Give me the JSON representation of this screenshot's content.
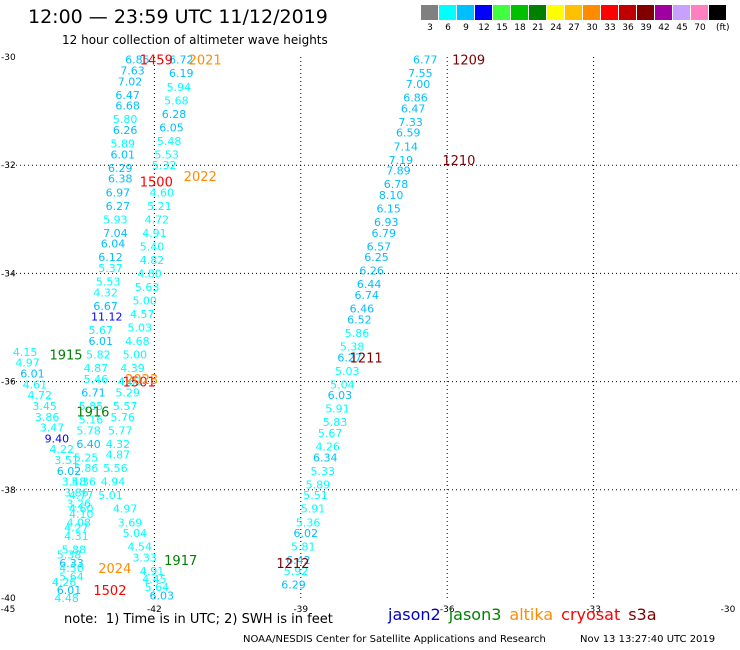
{
  "header": {
    "title": "12:00 — 23:59 UTC 11/12/2019",
    "subtitle": "12 hour collection of altimeter wave heights"
  },
  "scale": {
    "units": "(ft)",
    "bins": [
      {
        "label": "3",
        "color": "#808080"
      },
      {
        "label": "6",
        "color": "#00ffff"
      },
      {
        "label": "9",
        "color": "#00bfff"
      },
      {
        "label": "12",
        "color": "#0000ff"
      },
      {
        "label": "15",
        "color": "#40ff40"
      },
      {
        "label": "18",
        "color": "#00c000"
      },
      {
        "label": "21",
        "color": "#008000"
      },
      {
        "label": "24",
        "color": "#ffff00"
      },
      {
        "label": "27",
        "color": "#ffc000"
      },
      {
        "label": "30",
        "color": "#ff8c00"
      },
      {
        "label": "33",
        "color": "#ff0000"
      },
      {
        "label": "36",
        "color": "#c00000"
      },
      {
        "label": "39",
        "color": "#800000"
      },
      {
        "label": "42",
        "color": "#a000a0"
      },
      {
        "label": "45",
        "color": "#c8a0ff"
      },
      {
        "label": "70",
        "color": "#ff80c0"
      },
      {
        "label": "",
        "color": "#000000"
      }
    ]
  },
  "map": {
    "lon_ticks": [
      "-45",
      "-42",
      "-39",
      "-36",
      "-33",
      "-30"
    ],
    "lat_ticks": [
      "-30",
      "-32",
      "-34",
      "-36",
      "-38",
      "-40"
    ],
    "lon_range": [
      -45,
      -30
    ],
    "lat_range": [
      -40,
      -30
    ],
    "grid": "dotted",
    "colors": {
      "jason2": "#0000cc",
      "jason3": "#008000",
      "altika": "#ff8c00",
      "cryosat": "#ff0000",
      "s3a": "#800000"
    }
  },
  "tracks": [
    {
      "sat": "s3a",
      "times": [
        {
          "t": "1209",
          "lon": -35.9,
          "lat": -30.05
        },
        {
          "t": "1210",
          "lon": -36.1,
          "lat": -31.9
        },
        {
          "t": "1211",
          "lon": -38.0,
          "lat": -35.55
        },
        {
          "t": "1212",
          "lon": -39.5,
          "lat": -39.35
        }
      ],
      "points": [
        {
          "v": "6.77",
          "lon": -36.7,
          "lat": -30.05
        },
        {
          "v": "7.55",
          "lon": -36.8,
          "lat": -30.3
        },
        {
          "v": "7.00",
          "lon": -36.85,
          "lat": -30.5
        },
        {
          "v": "6.86",
          "lon": -36.9,
          "lat": -30.75
        },
        {
          "v": "6.47",
          "lon": -36.95,
          "lat": -30.95
        },
        {
          "v": "7.33",
          "lon": -37.0,
          "lat": -31.2
        },
        {
          "v": "6.59",
          "lon": -37.05,
          "lat": -31.4
        },
        {
          "v": "7.14",
          "lon": -37.1,
          "lat": -31.65
        },
        {
          "v": "7.19",
          "lon": -37.2,
          "lat": -31.9
        },
        {
          "v": "7.89",
          "lon": -37.25,
          "lat": -32.1
        },
        {
          "v": "6.78",
          "lon": -37.3,
          "lat": -32.35
        },
        {
          "v": "8.10",
          "lon": -37.4,
          "lat": -32.55
        },
        {
          "v": "6.15",
          "lon": -37.45,
          "lat": -32.8
        },
        {
          "v": "6.93",
          "lon": -37.5,
          "lat": -33.05
        },
        {
          "v": "6.79",
          "lon": -37.55,
          "lat": -33.25
        },
        {
          "v": "6.57",
          "lon": -37.65,
          "lat": -33.5
        },
        {
          "v": "6.25",
          "lon": -37.7,
          "lat": -33.7
        },
        {
          "v": "6.26",
          "lon": -37.8,
          "lat": -33.95
        },
        {
          "v": "6.44",
          "lon": -37.85,
          "lat": -34.2
        },
        {
          "v": "6.74",
          "lon": -37.9,
          "lat": -34.4
        },
        {
          "v": "6.46",
          "lon": -38.0,
          "lat": -34.65
        },
        {
          "v": "6.52",
          "lon": -38.05,
          "lat": -34.85
        },
        {
          "v": "5.86",
          "lon": -38.1,
          "lat": -35.1
        },
        {
          "v": "5.38",
          "lon": -38.2,
          "lat": -35.35
        },
        {
          "v": "6.27",
          "lon": -38.25,
          "lat": -35.55
        },
        {
          "v": "5.03",
          "lon": -38.3,
          "lat": -35.8
        },
        {
          "v": "5.04",
          "lon": -38.4,
          "lat": -36.05
        },
        {
          "v": "6.03",
          "lon": -38.45,
          "lat": -36.25
        },
        {
          "v": "5.91",
          "lon": -38.5,
          "lat": -36.5
        },
        {
          "v": "5.83",
          "lon": -38.55,
          "lat": -36.75
        },
        {
          "v": "5.67",
          "lon": -38.65,
          "lat": -36.95
        },
        {
          "v": "4.26",
          "lon": -38.7,
          "lat": -37.2
        },
        {
          "v": "6.34",
          "lon": -38.75,
          "lat": -37.4
        },
        {
          "v": "5.33",
          "lon": -38.8,
          "lat": -37.65
        },
        {
          "v": "5.89",
          "lon": -38.9,
          "lat": -37.9
        },
        {
          "v": "5.51",
          "lon": -38.95,
          "lat": -38.1
        },
        {
          "v": "5.91",
          "lon": -39.0,
          "lat": -38.35
        },
        {
          "v": "5.36",
          "lon": -39.1,
          "lat": -38.6
        },
        {
          "v": "6.02",
          "lon": -39.15,
          "lat": -38.8
        },
        {
          "v": "5.81",
          "lon": -39.2,
          "lat": -39.05
        },
        {
          "v": "6.42",
          "lon": -39.3,
          "lat": -39.3
        },
        {
          "v": "5.92",
          "lon": -39.35,
          "lat": -39.5
        },
        {
          "v": "6.29",
          "lon": -39.4,
          "lat": -39.75
        }
      ]
    },
    {
      "sat": "altika",
      "times": [
        {
          "t": "2021",
          "lon": -41.3,
          "lat": -30.05
        },
        {
          "t": "2022",
          "lon": -41.4,
          "lat": -32.2
        }
      ],
      "points": [
        {
          "v": "6.72",
          "lon": -41.7,
          "lat": -30.05
        },
        {
          "v": "6.19",
          "lon": -41.7,
          "lat": -30.3
        },
        {
          "v": "5.94",
          "lon": -41.75,
          "lat": -30.55
        },
        {
          "v": "5.68",
          "lon": -41.8,
          "lat": -30.8
        },
        {
          "v": "6.28",
          "lon": -41.85,
          "lat": -31.05
        },
        {
          "v": "6.05",
          "lon": -41.9,
          "lat": -31.3
        },
        {
          "v": "5.48",
          "lon": -41.95,
          "lat": -31.55
        },
        {
          "v": "5.53",
          "lon": -42.0,
          "lat": -31.8
        },
        {
          "v": "5.32",
          "lon": -42.05,
          "lat": -32.0
        },
        {
          "v": "4.60",
          "lon": -42.1,
          "lat": -32.5
        },
        {
          "v": "5.21",
          "lon": -42.15,
          "lat": -32.75
        },
        {
          "v": "4.72",
          "lon": -42.2,
          "lat": -33.0
        },
        {
          "v": "4.91",
          "lon": -42.25,
          "lat": -33.25
        },
        {
          "v": "5.40",
          "lon": -42.3,
          "lat": -33.5
        },
        {
          "v": "4.82",
          "lon": -42.3,
          "lat": -33.75
        },
        {
          "v": "4.80",
          "lon": -42.35,
          "lat": -34.0
        },
        {
          "v": "5.63",
          "lon": -42.4,
          "lat": -34.25
        },
        {
          "v": "5.00",
          "lon": -42.45,
          "lat": -34.5
        },
        {
          "v": "4.57",
          "lon": -42.5,
          "lat": -34.75
        },
        {
          "v": "5.03",
          "lon": -42.55,
          "lat": -35.0
        },
        {
          "v": "4.68",
          "lon": -42.6,
          "lat": -35.25
        },
        {
          "v": "5.00",
          "lon": -42.65,
          "lat": -35.5
        },
        {
          "v": "4.39",
          "lon": -42.7,
          "lat": -35.75
        },
        {
          "v": "4.63",
          "lon": -42.75,
          "lat": -36.0
        },
        {
          "v": "5.29",
          "lon": -42.8,
          "lat": -36.2
        },
        {
          "v": "5.57",
          "lon": -42.85,
          "lat": -36.45
        },
        {
          "v": "5.76",
          "lon": -42.9,
          "lat": -36.65
        },
        {
          "v": "5.77",
          "lon": -42.95,
          "lat": -36.9
        },
        {
          "v": "4.32",
          "lon": -43.0,
          "lat": -37.15
        },
        {
          "v": "4.87",
          "lon": -43.0,
          "lat": -37.35
        },
        {
          "v": "5.56",
          "lon": -43.05,
          "lat": -37.6
        },
        {
          "v": "4.94",
          "lon": -43.1,
          "lat": -37.85
        },
        {
          "v": "5.01",
          "lon": -43.15,
          "lat": -38.1
        },
        {
          "v": "4.97",
          "lon": -42.85,
          "lat": -38.35
        },
        {
          "v": "3.69",
          "lon": -42.75,
          "lat": -38.6
        },
        {
          "v": "5.04",
          "lon": -42.65,
          "lat": -38.8
        },
        {
          "v": "4.54",
          "lon": -42.55,
          "lat": -39.05
        },
        {
          "v": "3.33",
          "lon": -42.45,
          "lat": -39.25
        },
        {
          "v": "4.91",
          "lon": -42.3,
          "lat": -39.5
        },
        {
          "v": "4.45",
          "lon": -42.25,
          "lat": -39.65
        },
        {
          "v": "5.64",
          "lon": -42.2,
          "lat": -39.8
        },
        {
          "v": "6.03",
          "lon": -42.1,
          "lat": -39.95
        }
      ]
    },
    {
      "sat": "cryosat",
      "times": [
        {
          "t": "1459",
          "lon": -42.3,
          "lat": -30.05
        },
        {
          "t": "1500",
          "lon": -42.3,
          "lat": -32.3
        },
        {
          "t": "1501",
          "lon": -42.65,
          "lat": -36.0
        },
        {
          "t": "1502",
          "lon": -43.25,
          "lat": -39.85
        }
      ],
      "points": [
        {
          "v": "6.85",
          "lon": -42.6,
          "lat": -30.05
        },
        {
          "v": "7.63",
          "lon": -42.7,
          "lat": -30.25
        },
        {
          "v": "7.02",
          "lon": -42.75,
          "lat": -30.45
        },
        {
          "v": "6.47",
          "lon": -42.8,
          "lat": -30.7
        },
        {
          "v": "6.68",
          "lon": -42.8,
          "lat": -30.9
        },
        {
          "v": "5.80",
          "lon": -42.85,
          "lat": -31.15
        },
        {
          "v": "6.26",
          "lon": -42.85,
          "lat": -31.35
        },
        {
          "v": "5.89",
          "lon": -42.9,
          "lat": -31.6
        },
        {
          "v": "6.01",
          "lon": -42.9,
          "lat": -31.8
        },
        {
          "v": "6.29",
          "lon": -42.95,
          "lat": -32.05
        },
        {
          "v": "6.38",
          "lon": -42.95,
          "lat": -32.25
        },
        {
          "v": "6.97",
          "lon": -43.0,
          "lat": -32.5
        },
        {
          "v": "6.27",
          "lon": -43.0,
          "lat": -32.75
        },
        {
          "v": "5.93",
          "lon": -43.05,
          "lat": -33.0
        },
        {
          "v": "7.04",
          "lon": -43.05,
          "lat": -33.25
        },
        {
          "v": "6.04",
          "lon": -43.1,
          "lat": -33.45
        },
        {
          "v": "6.12",
          "lon": -43.15,
          "lat": -33.7
        },
        {
          "v": "5.37",
          "lon": -43.15,
          "lat": -33.9
        },
        {
          "v": "5.53",
          "lon": -43.2,
          "lat": -34.15
        },
        {
          "v": "4.32",
          "lon": -43.25,
          "lat": -34.35
        },
        {
          "v": "6.67",
          "lon": -43.25,
          "lat": -34.6
        },
        {
          "v": "11.12",
          "lon": -43.3,
          "lat": -34.8
        },
        {
          "v": "5.67",
          "lon": -43.35,
          "lat": -35.05
        },
        {
          "v": "6.01",
          "lon": -43.35,
          "lat": -35.25
        },
        {
          "v": "5.82",
          "lon": -43.4,
          "lat": -35.5
        },
        {
          "v": "4.87",
          "lon": -43.45,
          "lat": -35.75
        },
        {
          "v": "5.46",
          "lon": -43.45,
          "lat": -35.95
        },
        {
          "v": "6.71",
          "lon": -43.5,
          "lat": -36.2
        },
        {
          "v": "5.85",
          "lon": -43.55,
          "lat": -36.45
        },
        {
          "v": "5.16",
          "lon": -43.55,
          "lat": -36.7
        },
        {
          "v": "5.78",
          "lon": -43.6,
          "lat": -36.9
        },
        {
          "v": "6.40",
          "lon": -43.6,
          "lat": -37.15
        },
        {
          "v": "5.25",
          "lon": -43.65,
          "lat": -37.4
        },
        {
          "v": "5.86",
          "lon": -43.65,
          "lat": -37.6
        },
        {
          "v": "5.36",
          "lon": -43.7,
          "lat": -37.85
        },
        {
          "v": "4.77",
          "lon": -43.75,
          "lat": -38.1
        },
        {
          "v": "4.60",
          "lon": -43.75,
          "lat": -38.35
        },
        {
          "v": "4.08",
          "lon": -43.8,
          "lat": -38.6
        },
        {
          "v": "4.31",
          "lon": -43.85,
          "lat": -38.85
        },
        {
          "v": "5.88",
          "lon": -43.9,
          "lat": -39.1
        },
        {
          "v": "6.33",
          "lon": -43.95,
          "lat": -39.35
        },
        {
          "v": "5.64",
          "lon": -43.95,
          "lat": -39.6
        },
        {
          "v": "6.01",
          "lon": -44.0,
          "lat": -39.85
        }
      ]
    },
    {
      "sat": "jason3",
      "times": [
        {
          "t": "1915",
          "lon": -44.15,
          "lat": -35.5
        },
        {
          "t": "1916",
          "lon": -43.6,
          "lat": -36.55
        },
        {
          "t": "1917",
          "lon": -41.8,
          "lat": -39.3
        }
      ],
      "points": [
        {
          "v": "4.15",
          "lon": -44.9,
          "lat": -35.45
        },
        {
          "v": "4.97",
          "lon": -44.85,
          "lat": -35.65
        },
        {
          "v": "6.01",
          "lon": -44.75,
          "lat": -35.85
        },
        {
          "v": "4.61",
          "lon": -44.7,
          "lat": -36.05
        },
        {
          "v": "4.72",
          "lon": -44.6,
          "lat": -36.25
        },
        {
          "v": "3.45",
          "lon": -44.5,
          "lat": -36.45
        },
        {
          "v": "3.86",
          "lon": -44.45,
          "lat": -36.65
        },
        {
          "v": "3.47",
          "lon": -44.35,
          "lat": -36.85
        },
        {
          "v": "9.40",
          "lon": -44.25,
          "lat": -37.05
        },
        {
          "v": "4.22",
          "lon": -44.15,
          "lat": -37.25
        },
        {
          "v": "3.51",
          "lon": -44.05,
          "lat": -37.45
        },
        {
          "v": "6.02",
          "lon": -44.0,
          "lat": -37.65
        },
        {
          "v": "3.48",
          "lon": -43.9,
          "lat": -37.85
        },
        {
          "v": "3.86",
          "lon": -43.85,
          "lat": -38.05
        },
        {
          "v": "3.26",
          "lon": -43.8,
          "lat": -38.25
        },
        {
          "v": "4.10",
          "lon": -43.75,
          "lat": -38.45
        },
        {
          "v": "4.27",
          "lon": -43.85,
          "lat": -38.7
        },
        {
          "v": "5.38",
          "lon": -44.0,
          "lat": -39.2
        },
        {
          "v": "4.50",
          "lon": -43.95,
          "lat": -39.45
        },
        {
          "v": "4.26",
          "lon": -44.1,
          "lat": -39.7
        },
        {
          "v": "4.48",
          "lon": -44.05,
          "lat": -40.0
        }
      ]
    },
    {
      "sat": "altika",
      "times": [
        {
          "t": "2023",
          "lon": -42.6,
          "lat": -35.95
        },
        {
          "t": "2024",
          "lon": -43.15,
          "lat": -39.45
        }
      ],
      "points": []
    }
  ],
  "footer": {
    "note": "note:  1) Time is in UTC; 2) SWH is in feet",
    "sat_labels": [
      {
        "name": "jason2",
        "key": "jason2"
      },
      {
        "name": "jason3",
        "key": "jason3"
      },
      {
        "name": "altika",
        "key": "altika"
      },
      {
        "name": "cryosat",
        "key": "cryosat"
      },
      {
        "name": "s3a",
        "key": "s3a"
      }
    ],
    "credit": "NOAA/NESDIS Center for Satellite Applications and Research",
    "stamp": "Nov 13 13:27:40 UTC 2019"
  }
}
